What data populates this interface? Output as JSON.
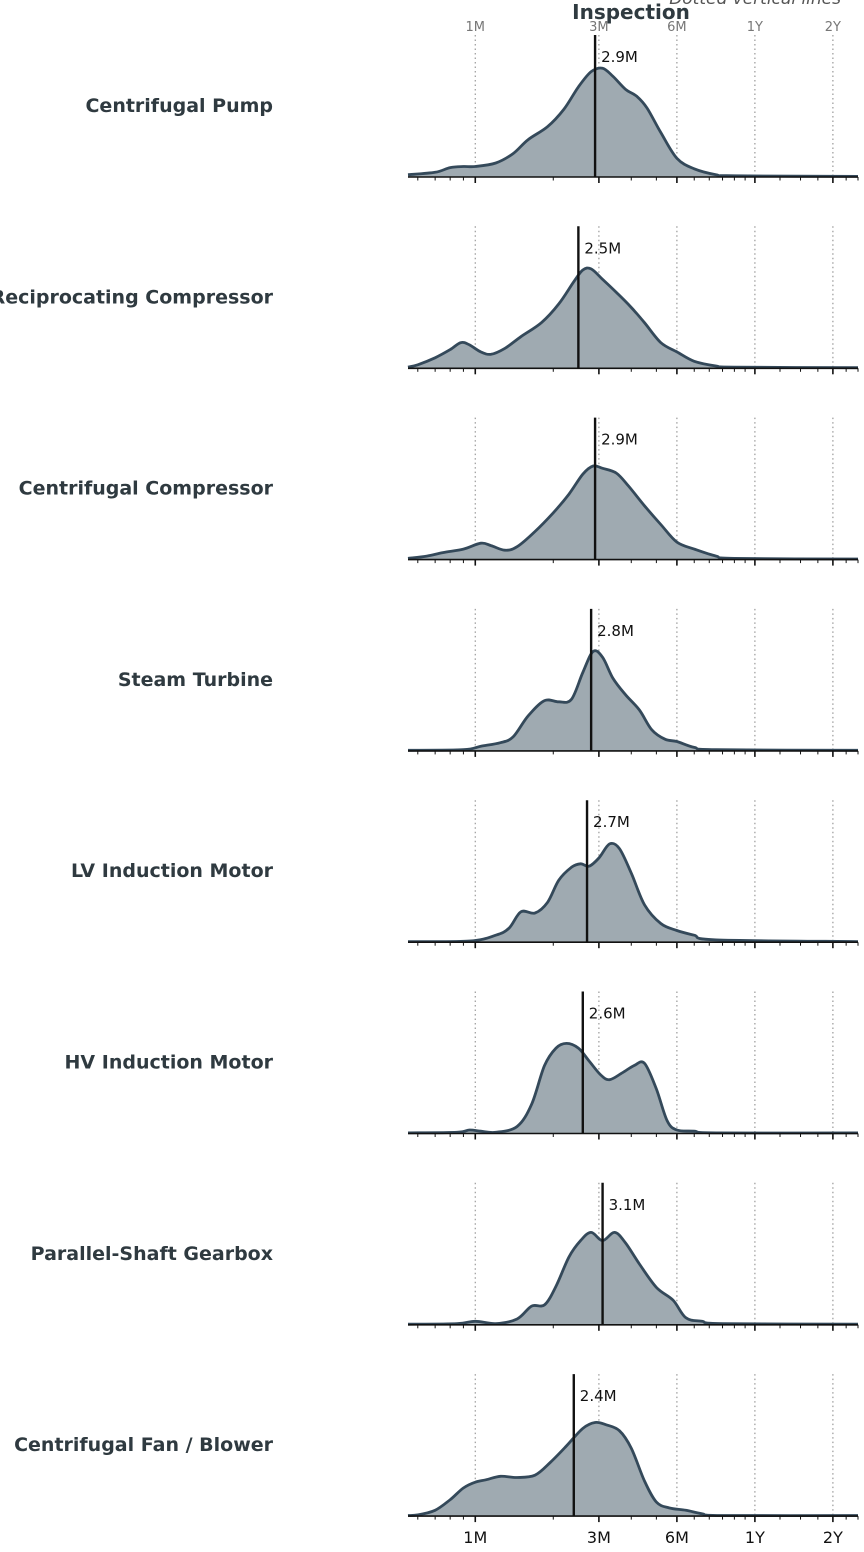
{
  "chart_data": {
    "type": "area",
    "chart_kind": "ridgeline density",
    "title": "Inspection",
    "note": "Dotted vertical lines",
    "x_scale": "log",
    "x_unit": "months",
    "xlim": [
      0.55,
      30
    ],
    "ticks": [
      {
        "label": "1M",
        "value": 1
      },
      {
        "label": "3M",
        "value": 3
      },
      {
        "label": "6M",
        "value": 6
      },
      {
        "label": "1Y",
        "value": 12
      },
      {
        "label": "2Y",
        "value": 24
      }
    ],
    "fill_color": "#9faab1",
    "line_color": "#34495a",
    "median_color": "#111111",
    "series": [
      {
        "name": "Centrifugal Pump",
        "median": 2.9,
        "median_label": "2.9M",
        "density": [
          [
            0.55,
            0.02
          ],
          [
            0.7,
            0.04
          ],
          [
            0.8,
            0.08
          ],
          [
            0.9,
            0.09
          ],
          [
            1.0,
            0.09
          ],
          [
            1.2,
            0.12
          ],
          [
            1.4,
            0.2
          ],
          [
            1.6,
            0.32
          ],
          [
            1.9,
            0.43
          ],
          [
            2.2,
            0.58
          ],
          [
            2.5,
            0.77
          ],
          [
            2.8,
            0.9
          ],
          [
            3.1,
            0.93
          ],
          [
            3.4,
            0.86
          ],
          [
            3.8,
            0.75
          ],
          [
            4.2,
            0.69
          ],
          [
            4.6,
            0.59
          ],
          [
            5.2,
            0.38
          ],
          [
            6.0,
            0.16
          ],
          [
            7.0,
            0.07
          ],
          [
            8.5,
            0.02
          ],
          [
            10,
            0.01
          ],
          [
            30,
            0.005
          ]
        ]
      },
      {
        "name": "Reciprocating Compressor",
        "median": 2.5,
        "median_label": "2.5M",
        "density": [
          [
            0.55,
            0.01
          ],
          [
            0.6,
            0.03
          ],
          [
            0.7,
            0.09
          ],
          [
            0.8,
            0.16
          ],
          [
            0.88,
            0.22
          ],
          [
            0.95,
            0.2
          ],
          [
            1.05,
            0.14
          ],
          [
            1.15,
            0.12
          ],
          [
            1.3,
            0.17
          ],
          [
            1.5,
            0.27
          ],
          [
            1.8,
            0.39
          ],
          [
            2.1,
            0.55
          ],
          [
            2.4,
            0.74
          ],
          [
            2.6,
            0.84
          ],
          [
            2.8,
            0.85
          ],
          [
            3.1,
            0.76
          ],
          [
            3.5,
            0.65
          ],
          [
            4.0,
            0.52
          ],
          [
            4.5,
            0.39
          ],
          [
            5.2,
            0.22
          ],
          [
            6.0,
            0.14
          ],
          [
            7.0,
            0.06
          ],
          [
            8.5,
            0.02
          ],
          [
            10,
            0.01
          ],
          [
            30,
            0.005
          ]
        ]
      },
      {
        "name": "Centrifugal Compressor",
        "median": 2.9,
        "median_label": "2.9M",
        "density": [
          [
            0.55,
            0.01
          ],
          [
            0.65,
            0.03
          ],
          [
            0.75,
            0.06
          ],
          [
            0.9,
            0.09
          ],
          [
            1.05,
            0.14
          ],
          [
            1.15,
            0.12
          ],
          [
            1.3,
            0.08
          ],
          [
            1.45,
            0.11
          ],
          [
            1.7,
            0.24
          ],
          [
            2.0,
            0.4
          ],
          [
            2.3,
            0.56
          ],
          [
            2.6,
            0.73
          ],
          [
            2.85,
            0.8
          ],
          [
            3.1,
            0.78
          ],
          [
            3.5,
            0.74
          ],
          [
            3.9,
            0.63
          ],
          [
            4.5,
            0.46
          ],
          [
            5.2,
            0.3
          ],
          [
            6.0,
            0.15
          ],
          [
            7.0,
            0.09
          ],
          [
            8.5,
            0.03
          ],
          [
            10,
            0.01
          ],
          [
            30,
            0.005
          ]
        ]
      },
      {
        "name": "Steam Turbine",
        "median": 2.8,
        "median_label": "2.8M",
        "density": [
          [
            0.55,
            0.005
          ],
          [
            0.9,
            0.01
          ],
          [
            1.05,
            0.04
          ],
          [
            1.25,
            0.07
          ],
          [
            1.4,
            0.12
          ],
          [
            1.6,
            0.3
          ],
          [
            1.85,
            0.43
          ],
          [
            2.1,
            0.42
          ],
          [
            2.35,
            0.44
          ],
          [
            2.6,
            0.67
          ],
          [
            2.85,
            0.85
          ],
          [
            3.1,
            0.8
          ],
          [
            3.4,
            0.62
          ],
          [
            3.8,
            0.48
          ],
          [
            4.3,
            0.35
          ],
          [
            4.8,
            0.18
          ],
          [
            5.4,
            0.1
          ],
          [
            6.0,
            0.08
          ],
          [
            7.0,
            0.03
          ],
          [
            8.5,
            0.01
          ],
          [
            30,
            0.005
          ]
        ]
      },
      {
        "name": "LV Induction Motor",
        "median": 2.7,
        "median_label": "2.7M",
        "density": [
          [
            0.55,
            0.005
          ],
          [
            0.95,
            0.01
          ],
          [
            1.2,
            0.06
          ],
          [
            1.35,
            0.12
          ],
          [
            1.5,
            0.26
          ],
          [
            1.7,
            0.25
          ],
          [
            1.9,
            0.34
          ],
          [
            2.1,
            0.53
          ],
          [
            2.35,
            0.64
          ],
          [
            2.55,
            0.67
          ],
          [
            2.75,
            0.65
          ],
          [
            3.0,
            0.72
          ],
          [
            3.3,
            0.84
          ],
          [
            3.6,
            0.8
          ],
          [
            4.0,
            0.59
          ],
          [
            4.5,
            0.32
          ],
          [
            5.2,
            0.16
          ],
          [
            6.0,
            0.1
          ],
          [
            7.0,
            0.06
          ],
          [
            8.5,
            0.02
          ],
          [
            30,
            0.005
          ]
        ]
      },
      {
        "name": "HV Induction Motor",
        "median": 2.6,
        "median_label": "2.6M",
        "density": [
          [
            0.55,
            0.005
          ],
          [
            0.85,
            0.01
          ],
          [
            0.95,
            0.03
          ],
          [
            1.05,
            0.02
          ],
          [
            1.2,
            0.01
          ],
          [
            1.45,
            0.06
          ],
          [
            1.65,
            0.25
          ],
          [
            1.85,
            0.58
          ],
          [
            2.05,
            0.73
          ],
          [
            2.25,
            0.77
          ],
          [
            2.5,
            0.73
          ],
          [
            2.75,
            0.62
          ],
          [
            3.05,
            0.5
          ],
          [
            3.3,
            0.46
          ],
          [
            3.7,
            0.52
          ],
          [
            4.1,
            0.58
          ],
          [
            4.5,
            0.6
          ],
          [
            5.0,
            0.38
          ],
          [
            5.5,
            0.11
          ],
          [
            6.0,
            0.03
          ],
          [
            7.0,
            0.02
          ],
          [
            8.5,
            0.005
          ],
          [
            30,
            0.005
          ]
        ]
      },
      {
        "name": "Parallel-Shaft Gearbox",
        "median": 3.1,
        "median_label": "3.1M",
        "density": [
          [
            0.55,
            0.005
          ],
          [
            0.85,
            0.01
          ],
          [
            1.0,
            0.03
          ],
          [
            1.2,
            0.01
          ],
          [
            1.45,
            0.05
          ],
          [
            1.65,
            0.16
          ],
          [
            1.85,
            0.17
          ],
          [
            2.05,
            0.33
          ],
          [
            2.3,
            0.58
          ],
          [
            2.55,
            0.72
          ],
          [
            2.8,
            0.79
          ],
          [
            3.1,
            0.72
          ],
          [
            3.45,
            0.79
          ],
          [
            3.8,
            0.7
          ],
          [
            4.3,
            0.52
          ],
          [
            5.0,
            0.32
          ],
          [
            5.8,
            0.21
          ],
          [
            6.5,
            0.06
          ],
          [
            7.5,
            0.03
          ],
          [
            9.0,
            0.01
          ],
          [
            30,
            0.005
          ]
        ]
      },
      {
        "name": "Centrifugal Fan / Blower",
        "median": 2.4,
        "median_label": "2.4M",
        "density": [
          [
            0.55,
            0.005
          ],
          [
            0.6,
            0.01
          ],
          [
            0.7,
            0.05
          ],
          [
            0.8,
            0.14
          ],
          [
            0.9,
            0.24
          ],
          [
            1.0,
            0.29
          ],
          [
            1.1,
            0.31
          ],
          [
            1.25,
            0.34
          ],
          [
            1.45,
            0.33
          ],
          [
            1.7,
            0.35
          ],
          [
            1.95,
            0.46
          ],
          [
            2.25,
            0.6
          ],
          [
            2.6,
            0.75
          ],
          [
            2.9,
            0.8
          ],
          [
            3.2,
            0.78
          ],
          [
            3.6,
            0.73
          ],
          [
            4.0,
            0.58
          ],
          [
            4.5,
            0.3
          ],
          [
            5.0,
            0.12
          ],
          [
            5.6,
            0.07
          ],
          [
            6.5,
            0.05
          ],
          [
            7.5,
            0.02
          ],
          [
            9.0,
            0.005
          ],
          [
            30,
            0.005
          ]
        ]
      }
    ]
  }
}
